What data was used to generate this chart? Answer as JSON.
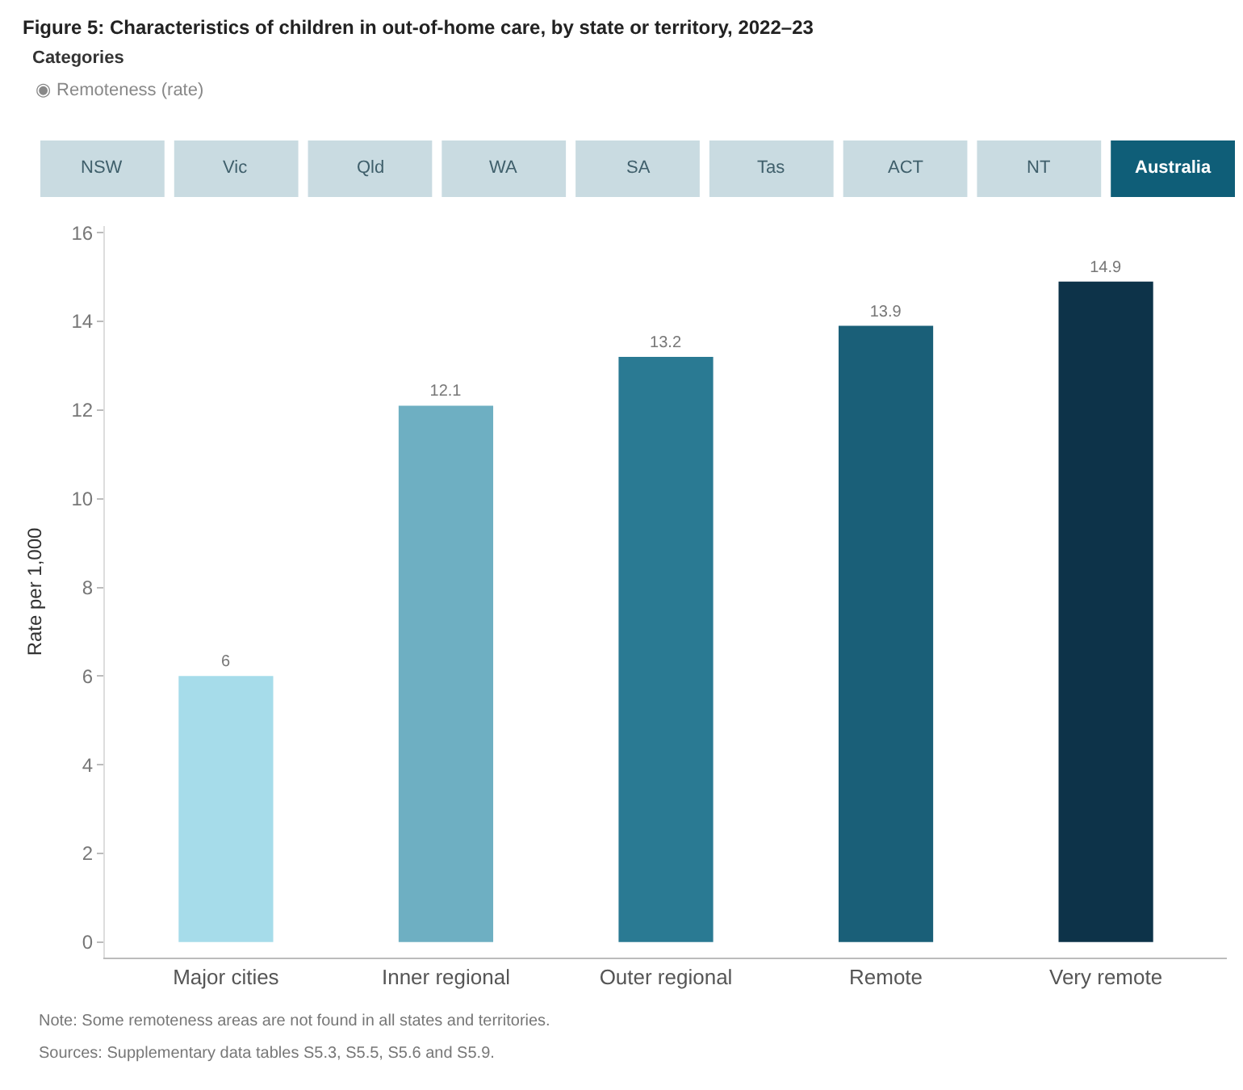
{
  "chart_data": {
    "type": "bar",
    "title": "Figure 5: Characteristics of children in out-of-home care, by state or territory, 2022–23",
    "subtitle": "Categories",
    "ylabel": "Rate per 1,000",
    "categories": [
      "Major cities",
      "Inner regional",
      "Outer regional",
      "Remote",
      "Very remote"
    ],
    "values": [
      6,
      12.1,
      13.2,
      13.9,
      14.9
    ],
    "colors": [
      "#a6dcea",
      "#6eafc2",
      "#2a7a93",
      "#1a5f78",
      "#0d3349"
    ],
    "data_labels": true,
    "ylim": [
      -0.35,
      16.15
    ],
    "yticks": [
      0,
      2,
      4,
      6,
      8,
      10,
      12,
      14,
      16
    ],
    "annotations": [
      "◉ Remoteness (rate)",
      "NSW",
      "Vic",
      "Qld",
      "WA",
      "SA",
      "Tas",
      "ACT",
      "NT",
      "Australia",
      "Note: Some remoteness areas are not found in all states and territories.",
      "Sources: Supplementary data tables S5.3, S5.5, S5.6 and S5.9."
    ]
  }
}
